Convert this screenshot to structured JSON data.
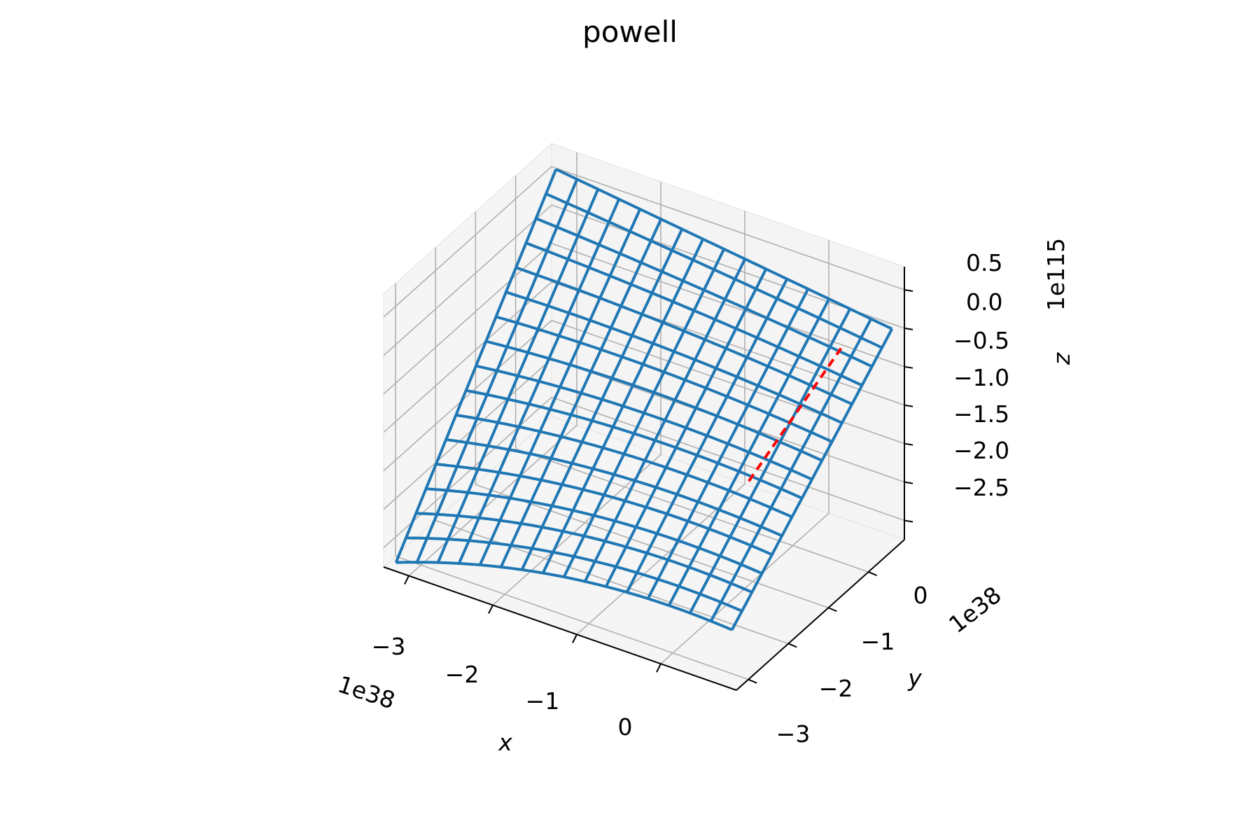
{
  "chart_data": {
    "type": "surface3d",
    "title": "powell",
    "xlabel": "x",
    "ylabel": "y",
    "zlabel": "z",
    "x_offset": "1e38",
    "y_offset": "1e38",
    "z_offset": "1e115",
    "x_ticks": [
      "−3",
      "−2",
      "−1",
      "0"
    ],
    "y_ticks": [
      "−3",
      "−2",
      "−1",
      "0"
    ],
    "z_ticks": [
      "0.5",
      "0.0",
      "−0.5",
      "−1.0",
      "−1.5",
      "−2.0",
      "−2.5"
    ],
    "xlim": [
      -3.3,
      0.9
    ],
    "ylim": [
      -3.3,
      0.9
    ],
    "zlim": [
      -2.75,
      0.8
    ],
    "grid": true,
    "surface": {
      "color": "#1f77b4",
      "wireframe": true,
      "x_range": [
        -3.2,
        0.8
      ],
      "y_range": [
        -3.2,
        0.8
      ],
      "z_corners": {
        "x_min_y_min": -2.7,
        "x_max_y_min": -2.05,
        "x_min_y_max": 0.55,
        "x_max_y_max": 0.0
      }
    },
    "path": {
      "color": "#ff0000",
      "style": "dashed",
      "points": [
        {
          "x": 0.0,
          "y": -1.1,
          "z": -1.4
        },
        {
          "x": 0.55,
          "y": 0.05,
          "z": 0.0
        }
      ]
    }
  }
}
